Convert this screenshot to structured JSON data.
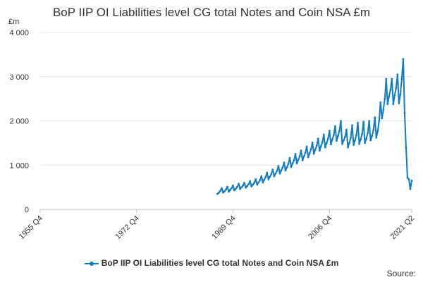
{
  "chart_data": {
    "type": "line",
    "title": "BoP IIP OI Liabilities level CG total Notes and Coin NSA £m",
    "unit": "£m",
    "ylim": [
      0,
      4000
    ],
    "y_ticks": [
      0,
      1000,
      2000,
      3000,
      4000
    ],
    "y_tick_labels": [
      "0",
      "1 000",
      "2 000",
      "3 000",
      "4 000"
    ],
    "x_ticks": [
      "1955 Q4",
      "1972 Q4",
      "1989 Q4",
      "2006 Q4",
      "2021 Q2"
    ],
    "grid": true,
    "legend_position": "bottom",
    "series": [
      {
        "name": "BoP IIP OI Liabilities level CG total Notes and Coin NSA £m",
        "color": "#0f7bc0",
        "data": [
          [
            "1987 Q1",
            350
          ],
          [
            "1987 Q2",
            380
          ],
          [
            "1987 Q3",
            420
          ],
          [
            "1987 Q4",
            480
          ],
          [
            "1988 Q1",
            380
          ],
          [
            "1988 Q2",
            410
          ],
          [
            "1988 Q3",
            450
          ],
          [
            "1988 Q4",
            510
          ],
          [
            "1989 Q1",
            400
          ],
          [
            "1989 Q2",
            440
          ],
          [
            "1989 Q3",
            480
          ],
          [
            "1989 Q4",
            540
          ],
          [
            "1990 Q1",
            430
          ],
          [
            "1990 Q2",
            470
          ],
          [
            "1990 Q3",
            510
          ],
          [
            "1990 Q4",
            580
          ],
          [
            "1991 Q1",
            460
          ],
          [
            "1991 Q2",
            500
          ],
          [
            "1991 Q3",
            540
          ],
          [
            "1991 Q4",
            600
          ],
          [
            "1992 Q1",
            490
          ],
          [
            "1992 Q2",
            530
          ],
          [
            "1992 Q3",
            570
          ],
          [
            "1992 Q4",
            640
          ],
          [
            "1993 Q1",
            520
          ],
          [
            "1993 Q2",
            560
          ],
          [
            "1993 Q3",
            600
          ],
          [
            "1993 Q4",
            680
          ],
          [
            "1994 Q1",
            560
          ],
          [
            "1994 Q2",
            610
          ],
          [
            "1994 Q3",
            660
          ],
          [
            "1994 Q4",
            750
          ],
          [
            "1995 Q1",
            610
          ],
          [
            "1995 Q2",
            670
          ],
          [
            "1995 Q3",
            730
          ],
          [
            "1995 Q4",
            830
          ],
          [
            "1996 Q1",
            680
          ],
          [
            "1996 Q2",
            740
          ],
          [
            "1996 Q3",
            800
          ],
          [
            "1996 Q4",
            900
          ],
          [
            "1997 Q1",
            750
          ],
          [
            "1997 Q2",
            810
          ],
          [
            "1997 Q3",
            870
          ],
          [
            "1997 Q4",
            980
          ],
          [
            "1998 Q1",
            810
          ],
          [
            "1998 Q2",
            880
          ],
          [
            "1998 Q3",
            950
          ],
          [
            "1998 Q4",
            1060
          ],
          [
            "1999 Q1",
            880
          ],
          [
            "1999 Q2",
            950
          ],
          [
            "1999 Q3",
            1030
          ],
          [
            "1999 Q4",
            1160
          ],
          [
            "2000 Q1",
            960
          ],
          [
            "2000 Q2",
            1040
          ],
          [
            "2000 Q3",
            1110
          ],
          [
            "2000 Q4",
            1250
          ],
          [
            "2001 Q1",
            1040
          ],
          [
            "2001 Q2",
            1120
          ],
          [
            "2001 Q3",
            1200
          ],
          [
            "2001 Q4",
            1330
          ],
          [
            "2002 Q1",
            1110
          ],
          [
            "2002 Q2",
            1200
          ],
          [
            "2002 Q3",
            1280
          ],
          [
            "2002 Q4",
            1420
          ],
          [
            "2003 Q1",
            1180
          ],
          [
            "2003 Q2",
            1270
          ],
          [
            "2003 Q3",
            1360
          ],
          [
            "2003 Q4",
            1510
          ],
          [
            "2004 Q1",
            1260
          ],
          [
            "2004 Q2",
            1350
          ],
          [
            "2004 Q3",
            1440
          ],
          [
            "2004 Q4",
            1600
          ],
          [
            "2005 Q1",
            1330
          ],
          [
            "2005 Q2",
            1430
          ],
          [
            "2005 Q3",
            1520
          ],
          [
            "2005 Q4",
            1690
          ],
          [
            "2006 Q1",
            1400
          ],
          [
            "2006 Q2",
            1500
          ],
          [
            "2006 Q3",
            1600
          ],
          [
            "2006 Q4",
            1780
          ],
          [
            "2007 Q1",
            1470
          ],
          [
            "2007 Q2",
            1580
          ],
          [
            "2007 Q3",
            1680
          ],
          [
            "2007 Q4",
            1880
          ],
          [
            "2008 Q1",
            1550
          ],
          [
            "2008 Q2",
            1660
          ],
          [
            "2008 Q3",
            1780
          ],
          [
            "2008 Q4",
            2000
          ],
          [
            "2009 Q1",
            1480
          ],
          [
            "2009 Q2",
            1560
          ],
          [
            "2009 Q3",
            1640
          ],
          [
            "2009 Q4",
            1800
          ],
          [
            "2010 Q1",
            1400
          ],
          [
            "2010 Q2",
            1500
          ],
          [
            "2010 Q3",
            1620
          ],
          [
            "2010 Q4",
            1900
          ],
          [
            "2011 Q1",
            1460
          ],
          [
            "2011 Q2",
            1560
          ],
          [
            "2011 Q3",
            1680
          ],
          [
            "2011 Q4",
            1960
          ],
          [
            "2012 Q1",
            1480
          ],
          [
            "2012 Q2",
            1580
          ],
          [
            "2012 Q3",
            1700
          ],
          [
            "2012 Q4",
            1980
          ],
          [
            "2013 Q1",
            1500
          ],
          [
            "2013 Q2",
            1600
          ],
          [
            "2013 Q3",
            1730
          ],
          [
            "2013 Q4",
            2000
          ],
          [
            "2014 Q1",
            1560
          ],
          [
            "2014 Q2",
            1660
          ],
          [
            "2014 Q3",
            1790
          ],
          [
            "2014 Q4",
            2080
          ],
          [
            "2015 Q1",
            1620
          ],
          [
            "2015 Q2",
            1760
          ],
          [
            "2015 Q3",
            2000
          ],
          [
            "2015 Q4",
            2420
          ],
          [
            "2016 Q1",
            2060
          ],
          [
            "2016 Q2",
            2250
          ],
          [
            "2016 Q3",
            2500
          ],
          [
            "2016 Q4",
            2950
          ],
          [
            "2017 Q1",
            2380
          ],
          [
            "2017 Q2",
            2550
          ],
          [
            "2017 Q3",
            2700
          ],
          [
            "2017 Q4",
            2950
          ],
          [
            "2018 Q1",
            2380
          ],
          [
            "2018 Q2",
            2580
          ],
          [
            "2018 Q3",
            2750
          ],
          [
            "2018 Q4",
            3050
          ],
          [
            "2019 Q1",
            2400
          ],
          [
            "2019 Q2",
            2600
          ],
          [
            "2019 Q3",
            2950
          ],
          [
            "2019 Q4",
            3400
          ],
          [
            "2020 Q1",
            2180
          ],
          [
            "2020 Q2",
            1400
          ],
          [
            "2020 Q3",
            720
          ],
          [
            "2020 Q4",
            680
          ],
          [
            "2021 Q1",
            460
          ],
          [
            "2021 Q2",
            650
          ]
        ]
      }
    ]
  },
  "source_label": "Source:"
}
